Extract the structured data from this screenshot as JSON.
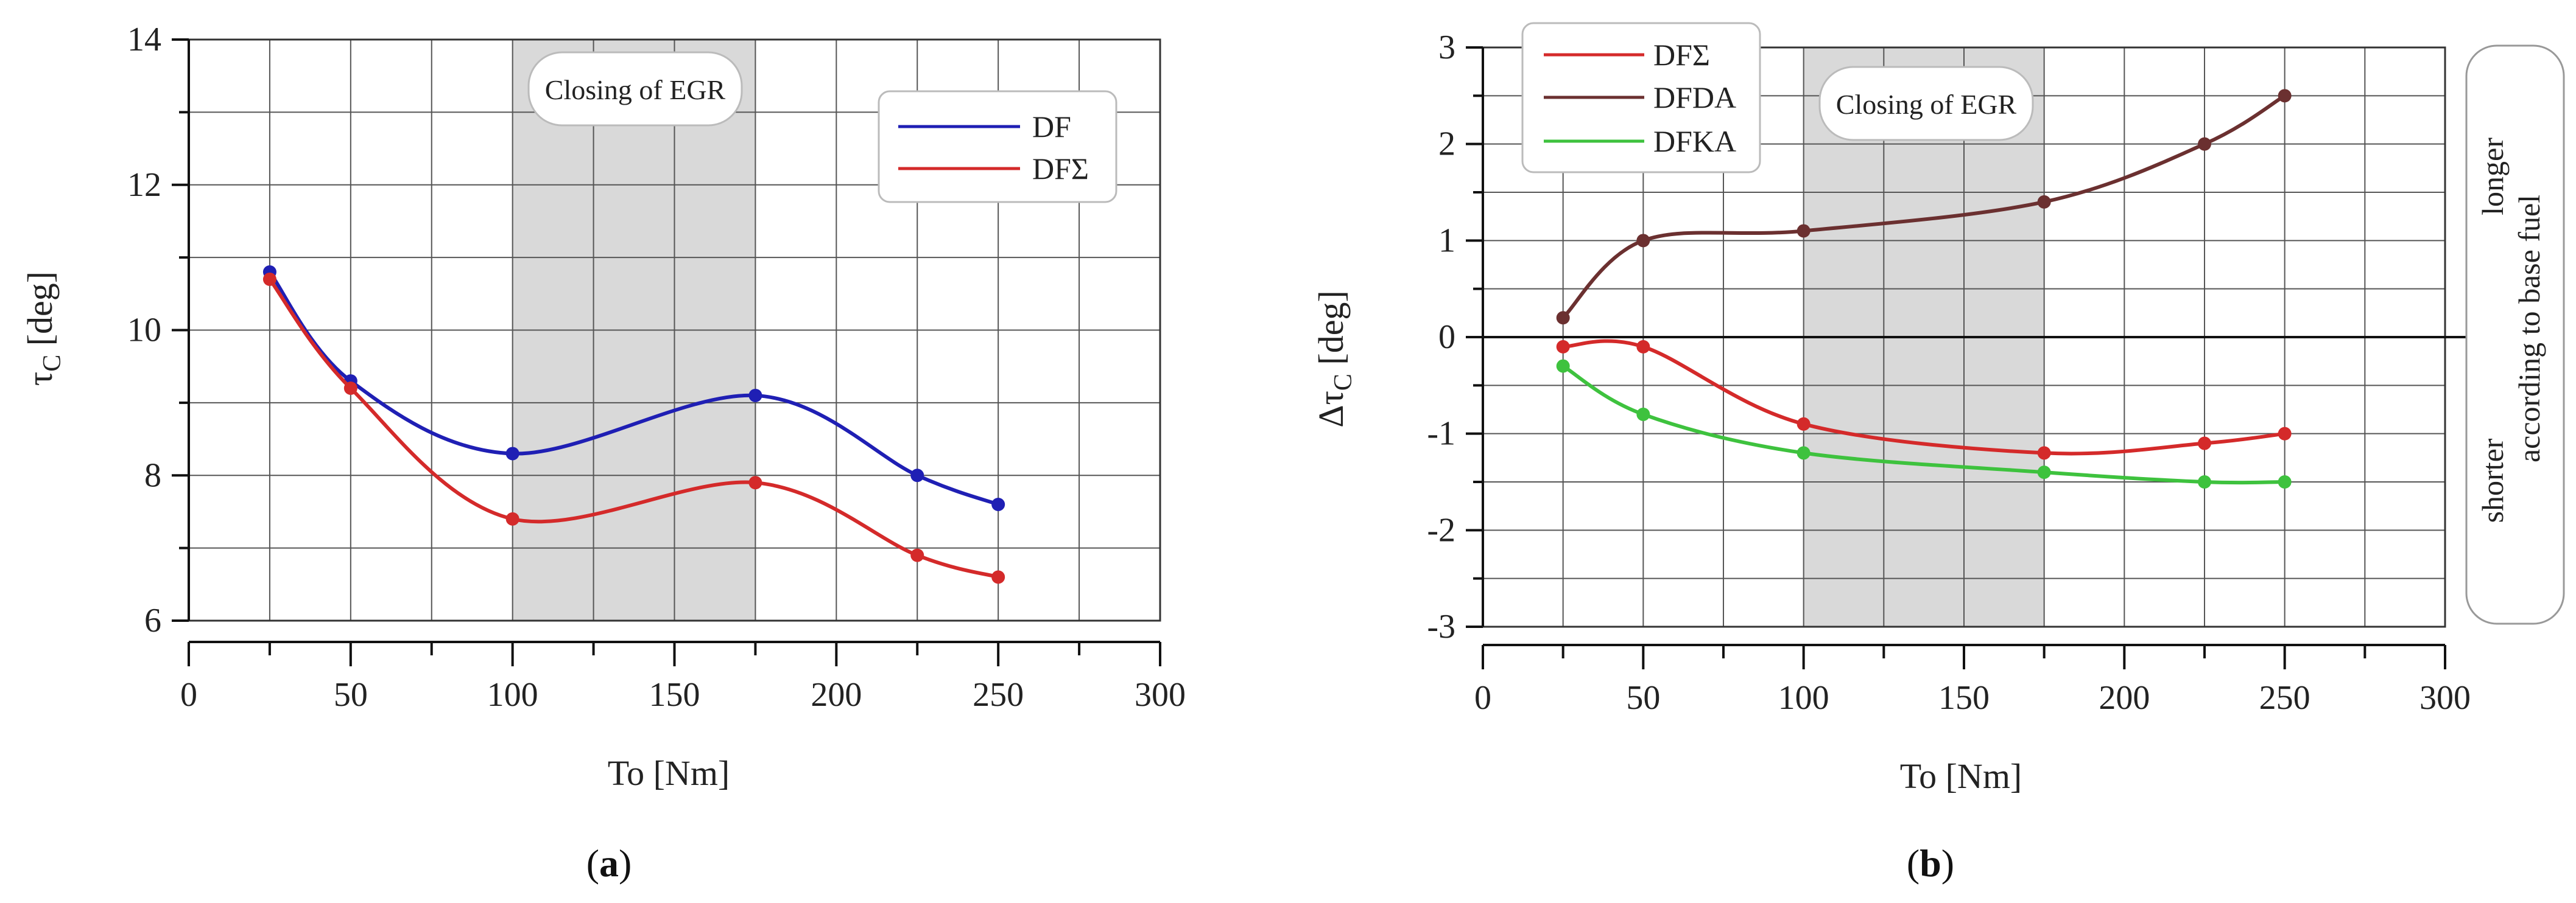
{
  "chart_data": [
    {
      "panel": "a",
      "type": "line",
      "caption_open": "(",
      "caption_letter": "a",
      "caption_close": ")",
      "xlabel": "To [Nm]",
      "ylabel_main": "τ",
      "ylabel_sub": "C",
      "ylabel_unit": " [deg]",
      "xlim": [
        0,
        300
      ],
      "ylim": [
        6,
        14
      ],
      "xticks": [
        0,
        50,
        100,
        150,
        200,
        250,
        300
      ],
      "yticks": [
        6,
        8,
        10,
        12,
        14
      ],
      "shaded_region": {
        "x_from": 100,
        "x_to": 175,
        "label": "Closing of EGR"
      },
      "series": [
        {
          "name": "DF",
          "color": "#1f1fb4",
          "x": [
            25,
            50,
            100,
            175,
            225,
            250
          ],
          "y": [
            10.8,
            9.3,
            8.3,
            9.1,
            8.0,
            7.6
          ]
        },
        {
          "name": "DFΣ",
          "color": "#d42a2a",
          "x": [
            25,
            50,
            100,
            175,
            225,
            250
          ],
          "y": [
            10.7,
            9.2,
            7.4,
            7.9,
            6.9,
            6.6
          ]
        }
      ]
    },
    {
      "panel": "b",
      "type": "line",
      "caption_open": "(",
      "caption_letter": "b",
      "caption_close": ")",
      "xlabel": "To [Nm]",
      "ylabel_main": "Δτ",
      "ylabel_sub": "C",
      "ylabel_unit": " [deg]",
      "xlim": [
        0,
        300
      ],
      "ylim": [
        -3,
        3
      ],
      "xticks": [
        0,
        50,
        100,
        150,
        200,
        250,
        300
      ],
      "yticks": [
        -3,
        -2,
        -1,
        0,
        1,
        2,
        3
      ],
      "shaded_region": {
        "x_from": 100,
        "x_to": 175,
        "label": "Closing of EGR"
      },
      "side_note": {
        "upper": "longer",
        "lower": "shorter",
        "middle": "according to base fuel"
      },
      "series": [
        {
          "name": "DFΣ",
          "color": "#d42a2a",
          "x": [
            25,
            50,
            100,
            175,
            225,
            250
          ],
          "y": [
            -0.1,
            -0.1,
            -0.9,
            -1.2,
            -1.1,
            -1.0
          ]
        },
        {
          "name": "DFDA",
          "color": "#6b3030",
          "x": [
            25,
            50,
            100,
            175,
            225,
            250
          ],
          "y": [
            0.2,
            1.0,
            1.1,
            1.4,
            2.0,
            2.5
          ]
        },
        {
          "name": "DFKA",
          "color": "#3ec23e",
          "x": [
            25,
            50,
            100,
            175,
            225,
            250
          ],
          "y": [
            -0.3,
            -0.8,
            -1.2,
            -1.4,
            -1.5,
            -1.5
          ]
        }
      ]
    }
  ]
}
